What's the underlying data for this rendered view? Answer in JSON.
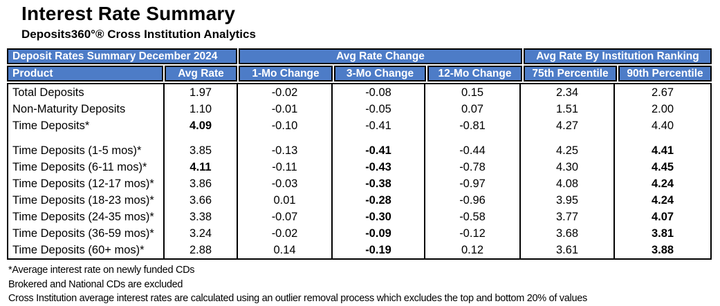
{
  "page": {
    "title": "Interest Rate Summary",
    "subtitle": "Deposits360°® Cross Institution Analytics"
  },
  "table": {
    "accent_color": "#4d7cc7",
    "group_headers": [
      {
        "label": "Deposit Rates Summary December 2024"
      },
      {
        "label": "Avg Rate Change"
      },
      {
        "label": "Avg Rate By Institution Ranking"
      }
    ],
    "columns": [
      "Product",
      "Avg Rate",
      "1-Mo Change",
      "3-Mo Change",
      "12-Mo Change",
      "75th Percentile",
      "90th Percentile"
    ],
    "rows": [
      {
        "product": "Total Deposits",
        "values": [
          "1.97",
          "-0.02",
          "-0.08",
          "0.15",
          "2.34",
          "2.67"
        ],
        "bold": [],
        "spacer_before": false
      },
      {
        "product": "Non-Maturity Deposits",
        "values": [
          "1.10",
          "-0.01",
          "-0.05",
          "0.07",
          "1.51",
          "2.00"
        ],
        "bold": [],
        "spacer_before": false
      },
      {
        "product": "Time Deposits*",
        "values": [
          "4.09",
          "-0.10",
          "-0.41",
          "-0.81",
          "4.27",
          "4.40"
        ],
        "bold": [
          0
        ],
        "spacer_before": false
      },
      {
        "product": "Time Deposits (1-5 mos)*",
        "values": [
          "3.85",
          "-0.13",
          "-0.41",
          "-0.44",
          "4.25",
          "4.41"
        ],
        "bold": [
          2,
          5
        ],
        "spacer_before": true
      },
      {
        "product": "Time Deposits (6-11 mos)*",
        "values": [
          "4.11",
          "-0.11",
          "-0.43",
          "-0.78",
          "4.30",
          "4.45"
        ],
        "bold": [
          0,
          2,
          5
        ],
        "spacer_before": false
      },
      {
        "product": "Time Deposits (12-17 mos)*",
        "values": [
          "3.86",
          "-0.03",
          "-0.38",
          "-0.97",
          "4.08",
          "4.24"
        ],
        "bold": [
          2,
          5
        ],
        "spacer_before": false
      },
      {
        "product": "Time Deposits (18-23 mos)*",
        "values": [
          "3.66",
          "0.01",
          "-0.28",
          "-0.96",
          "3.95",
          "4.24"
        ],
        "bold": [
          2,
          5
        ],
        "spacer_before": false
      },
      {
        "product": "Time Deposits (24-35 mos)*",
        "values": [
          "3.38",
          "-0.07",
          "-0.30",
          "-0.58",
          "3.77",
          "4.07"
        ],
        "bold": [
          2,
          5
        ],
        "spacer_before": false
      },
      {
        "product": "Time Deposits (36-59 mos)*",
        "values": [
          "3.24",
          "-0.02",
          "-0.09",
          "-0.12",
          "3.68",
          "3.81"
        ],
        "bold": [
          2,
          5
        ],
        "spacer_before": false
      },
      {
        "product": "Time Deposits (60+ mos)*",
        "values": [
          "2.88",
          "0.14",
          "-0.19",
          "0.12",
          "3.61",
          "3.88"
        ],
        "bold": [
          2,
          5
        ],
        "spacer_before": false
      }
    ]
  },
  "footnotes": [
    "*Average interest rate on newly funded CDs",
    "Brokered and National CDs are excluded",
    "Cross Institution average interest rates are calculated using an outlier removal process which excludes the top and bottom 20% of values"
  ]
}
